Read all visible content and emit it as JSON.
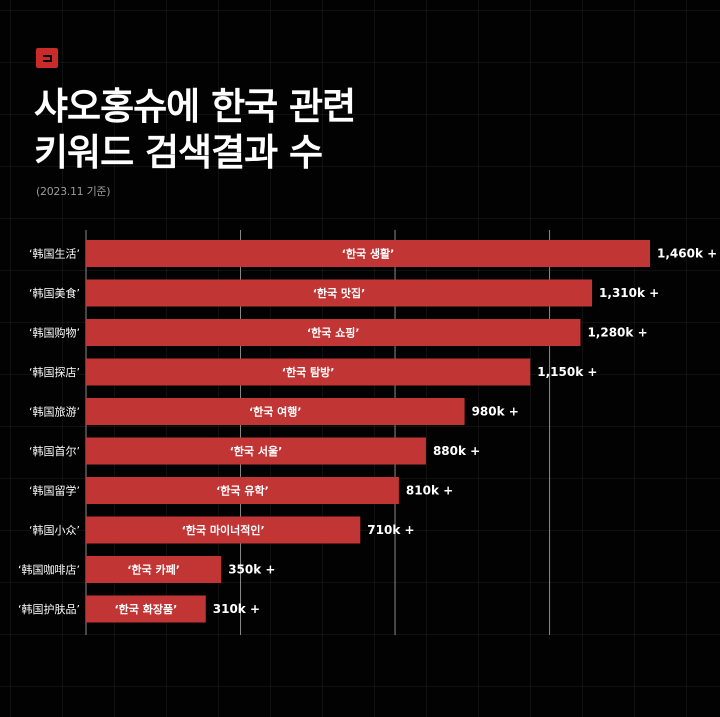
{
  "title_lines": [
    "샤오홍슈에 한국 관련",
    "키워드 검색결과 수"
  ],
  "subtitle": "(2023.11 기준)",
  "colors": {
    "bar": "#c23535",
    "background": "#020202",
    "accent": "#c92a2a"
  },
  "chart_data": {
    "type": "bar",
    "orientation": "horizontal",
    "title": "샤오홍슈에 한국 관련 키워드 검색결과 수",
    "subtitle": "(2023.11 기준)",
    "categories": [
      "‘韩国生活’",
      "‘韩国美食’",
      "‘韩国购物’",
      "‘韩国探店’",
      "‘韩国旅游’",
      "‘韩国首尔’",
      "‘韩国留学’",
      "‘韩国小众’",
      "‘韩国咖啡店’",
      "‘韩国护肤品’"
    ],
    "bar_labels": [
      "‘한국 생활’",
      "‘한국 맛집’",
      "‘한국 쇼핑’",
      "‘한국 탐방’",
      "‘한국 여행’",
      "‘한국 서울’",
      "‘한국 유학’",
      "‘한국 마이너적인’",
      "‘한국 카페’",
      "‘한국 화장품’"
    ],
    "values": [
      1460,
      1310,
      1280,
      1150,
      980,
      880,
      810,
      710,
      350,
      310
    ],
    "value_labels": [
      "1,460k +",
      "1,310k +",
      "1,280k +",
      "1,150k +",
      "980k +",
      "880k +",
      "810k +",
      "710k +",
      "350k +",
      "310k +"
    ],
    "unit": "k",
    "xlim": [
      0,
      1600
    ],
    "grid": true,
    "legend": "none"
  }
}
